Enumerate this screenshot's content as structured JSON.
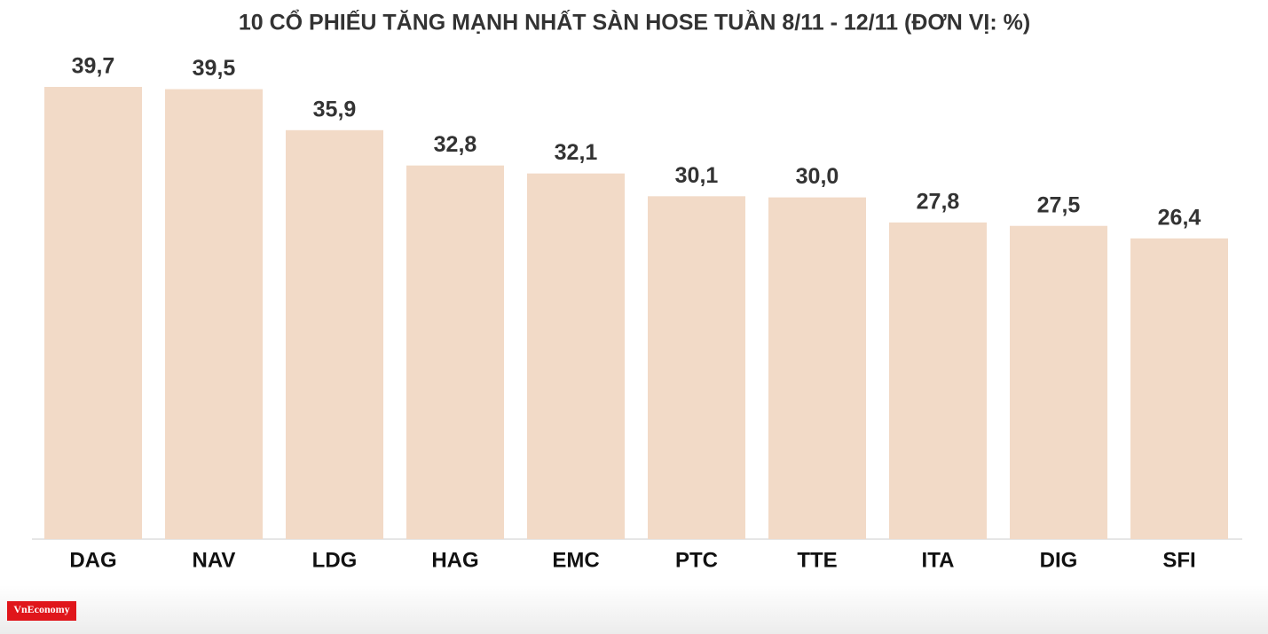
{
  "chart_data": {
    "type": "bar",
    "title": "10 CỔ PHIẾU TĂNG MẠNH NHẤT SÀN HOSE TUẦN 8/11 - 12/11 (ĐƠN VỊ: %)",
    "categories": [
      "DAG",
      "NAV",
      "LDG",
      "HAG",
      "EMC",
      "PTC",
      "TTE",
      "ITA",
      "DIG",
      "SFI"
    ],
    "values": [
      39.7,
      39.5,
      35.9,
      32.8,
      32.1,
      30.1,
      30.0,
      27.8,
      27.5,
      26.4
    ],
    "value_labels": [
      "39,7",
      "39,5",
      "35,9",
      "32,8",
      "32,1",
      "30,1",
      "30,0",
      "27,8",
      "27,5",
      "26,4"
    ],
    "color": "#f2dac7"
  },
  "logo": "VnEconomy"
}
